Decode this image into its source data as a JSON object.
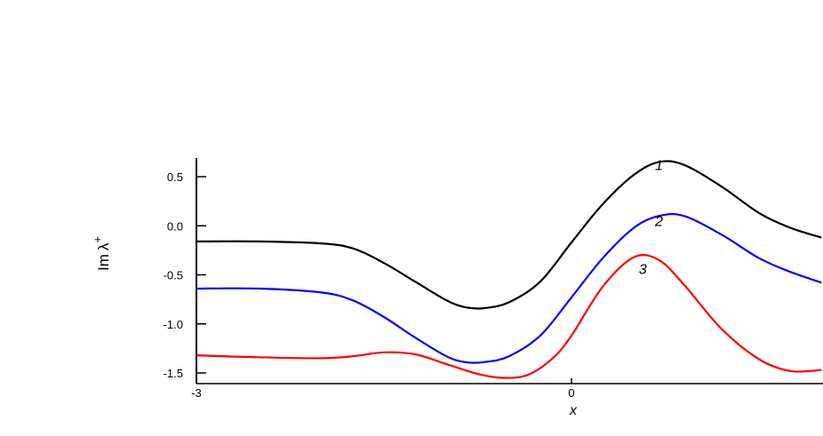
{
  "chart_data": {
    "type": "line",
    "title": "",
    "xlabel": "x",
    "ylabel_main": "Im",
    "ylabel_symbol": "λ",
    "ylabel_sup": "+",
    "xlim": [
      -3,
      2
    ],
    "ylim": [
      -1.6,
      0.7
    ],
    "x_ticks": [
      {
        "value": -3,
        "label": "-3"
      },
      {
        "value": 0,
        "label": "0"
      }
    ],
    "y_ticks": [
      {
        "value": 0.5,
        "label": "0.5"
      },
      {
        "value": 0.0,
        "label": "0.0"
      },
      {
        "value": -0.5,
        "label": "-0.5"
      },
      {
        "value": -1.0,
        "label": "-1.0"
      },
      {
        "value": -1.5,
        "label": "-1.5"
      }
    ],
    "series": [
      {
        "name": "1",
        "color": "#000000",
        "label_at": [
          0.7,
          0.57
        ],
        "x": [
          -3.0,
          -2.5,
          -2.0,
          -1.75,
          -1.5,
          -1.25,
          -1.0,
          -0.85,
          -0.7,
          -0.5,
          -0.25,
          0.0,
          0.25,
          0.5,
          0.7,
          0.9,
          1.2,
          1.5,
          1.75,
          2.0
        ],
        "y": [
          -0.16,
          -0.16,
          -0.18,
          -0.23,
          -0.38,
          -0.57,
          -0.76,
          -0.83,
          -0.84,
          -0.78,
          -0.57,
          -0.17,
          0.22,
          0.52,
          0.65,
          0.62,
          0.4,
          0.13,
          -0.02,
          -0.12
        ]
      },
      {
        "name": "2",
        "color": "#0000ff",
        "label_at": [
          0.7,
          0.0
        ],
        "x": [
          -3.0,
          -2.5,
          -2.0,
          -1.75,
          -1.5,
          -1.25,
          -1.0,
          -0.85,
          -0.7,
          -0.5,
          -0.25,
          0.0,
          0.25,
          0.5,
          0.7,
          0.9,
          1.2,
          1.5,
          1.75,
          2.0
        ],
        "y": [
          -0.64,
          -0.64,
          -0.68,
          -0.76,
          -0.93,
          -1.14,
          -1.33,
          -1.39,
          -1.39,
          -1.33,
          -1.12,
          -0.73,
          -0.33,
          -0.02,
          0.1,
          0.1,
          -0.09,
          -0.33,
          -0.47,
          -0.58
        ]
      },
      {
        "name": "3",
        "color": "#ff0000",
        "label_at": [
          0.57,
          -0.49
        ],
        "x": [
          -3.0,
          -2.5,
          -2.0,
          -1.75,
          -1.5,
          -1.25,
          -1.0,
          -0.75,
          -0.55,
          -0.35,
          -0.15,
          0.0,
          0.25,
          0.5,
          0.7,
          0.9,
          1.2,
          1.5,
          1.75,
          2.0
        ],
        "y": [
          -1.32,
          -1.34,
          -1.35,
          -1.33,
          -1.29,
          -1.31,
          -1.41,
          -1.51,
          -1.55,
          -1.52,
          -1.35,
          -1.12,
          -0.62,
          -0.32,
          -0.35,
          -0.6,
          -1.05,
          -1.36,
          -1.48,
          -1.47
        ]
      }
    ]
  }
}
